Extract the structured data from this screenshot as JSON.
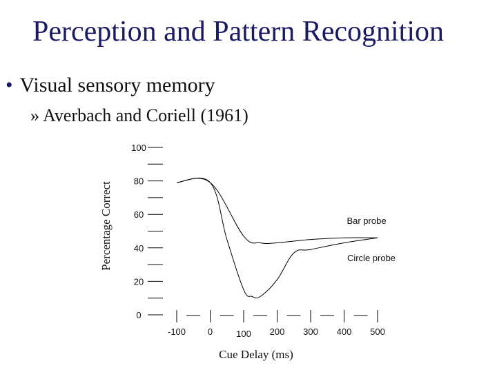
{
  "slide": {
    "title": "Perception and Pattern Recognition",
    "bullet": "Visual sensory memory",
    "subbullet": "Averbach and Coriell (1961)"
  },
  "chart_data": {
    "type": "line",
    "xlabel": "Cue Delay (ms)",
    "ylabel": "Percentage Correct",
    "x_ticks": [
      "-100",
      "0",
      "100",
      "200",
      "300",
      "400",
      "500"
    ],
    "y_ticks": [
      "0",
      "20",
      "40",
      "60",
      "80",
      "100"
    ],
    "xlim": [
      -100,
      500
    ],
    "ylim": [
      0,
      100
    ],
    "grid": false,
    "series": [
      {
        "name": "Bar probe",
        "x": [
          -100,
          0,
          100,
          150,
          200,
          300,
          400,
          500
        ],
        "y": [
          79,
          79,
          47,
          43,
          43,
          45,
          46,
          46
        ]
      },
      {
        "name": "Circle probe",
        "x": [
          -100,
          0,
          50,
          100,
          125,
          150,
          200,
          250,
          300,
          400,
          500
        ],
        "y": [
          79,
          79,
          45,
          15,
          11,
          11,
          21,
          37,
          39,
          43,
          46
        ]
      }
    ]
  }
}
